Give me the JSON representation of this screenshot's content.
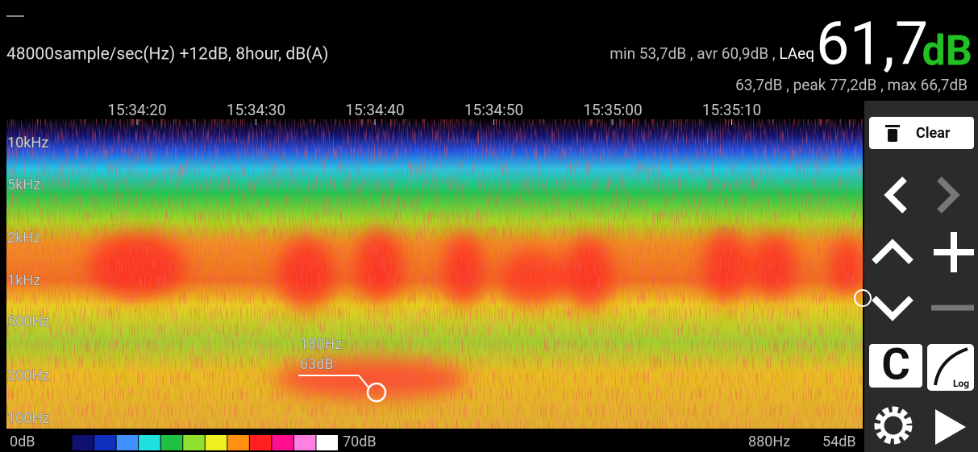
{
  "header": {
    "info": "48000sample/sec(Hz) +12dB, 8hour, dB(A)",
    "stats": "min 53,7dB , avr 60,9dB ,",
    "laeq_label": "LAeq",
    "laeq_value": "61,7",
    "laeq_unit": "dB",
    "stats2": "63,7dB , peak 77,2dB , max 66,7dB"
  },
  "time_axis": {
    "labels": [
      "15:34:20",
      "15:34:30",
      "15:34:40",
      "15:34:50",
      "15:35:00",
      "15:35:10"
    ]
  },
  "freq_axis": {
    "labels": [
      "10kHz",
      "5kHz",
      "2kHz",
      "1kHz",
      "500Hz",
      "200Hz",
      "100Hz"
    ]
  },
  "cursor": {
    "freq": "180Hz",
    "level": "63dB"
  },
  "colorbar": {
    "min": "0dB",
    "max": "70dB"
  },
  "status": {
    "freq": "880Hz",
    "level": "54dB"
  },
  "buttons": {
    "clear": "Clear",
    "c": "C",
    "log": "Log"
  }
}
